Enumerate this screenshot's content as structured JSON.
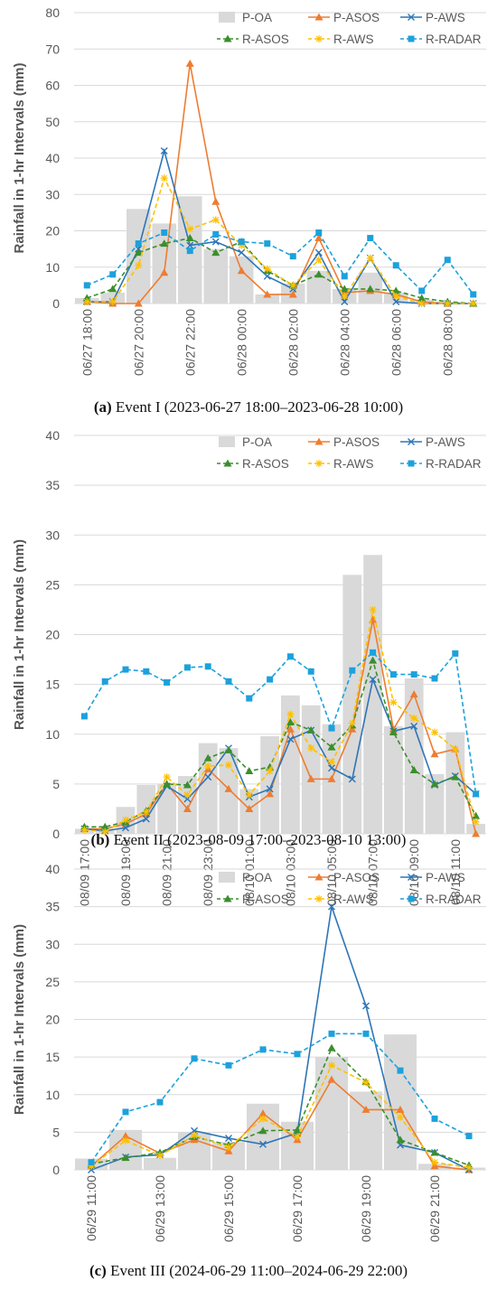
{
  "colors": {
    "P-OA": "#d9d9d9",
    "P-ASOS": "#ed7d31",
    "P-AWS": "#2e75b6",
    "R-ASOS": "#3a8f2c",
    "R-AWS": "#ffc000",
    "R-RADAR": "#1ca1dc"
  },
  "chart_data": [
    {
      "type": "bar",
      "ylabel": "Rainfall in 1-hr Intervals (mm)",
      "ylim": [
        0,
        80
      ],
      "yticks": [
        0,
        10,
        20,
        30,
        40,
        50,
        60,
        70,
        80
      ],
      "grid": true,
      "legend_position": "top-right",
      "x": [
        "06/27 18:00",
        "06/27 19:00",
        "06/27 20:00",
        "06/27 21:00",
        "06/27 22:00",
        "06/27 23:00",
        "06/28 00:00",
        "06/28 01:00",
        "06/28 02:00",
        "06/28 03:00",
        "06/28 04:00",
        "06/28 05:00",
        "06/28 06:00",
        "06/28 07:00",
        "06/28 08:00",
        "06/28 09:00"
      ],
      "tick_labels": [
        "06/27 18:00",
        "06/27 20:00",
        "06/27 22:00",
        "06/28 00:00",
        "06/28 02:00",
        "06/28 04:00",
        "06/28 06:00",
        "06/28 08:00"
      ],
      "series": [
        {
          "name": "P-OA",
          "kind": "bar",
          "values": [
            1.5,
            3,
            26,
            22,
            29.5,
            15,
            13,
            2.5,
            5.5,
            9,
            4,
            8.5,
            3,
            1,
            0.5,
            0
          ]
        },
        {
          "name": "P-ASOS",
          "kind": "line",
          "marker": "triangle",
          "dash": false,
          "values": [
            0.5,
            0,
            0,
            8.5,
            66,
            28,
            9,
            2.5,
            2.5,
            18,
            3,
            3.5,
            2.5,
            0.5,
            0,
            0
          ]
        },
        {
          "name": "P-AWS",
          "kind": "line",
          "marker": "x",
          "dash": false,
          "values": [
            0.5,
            0.5,
            15,
            42,
            16,
            17,
            14,
            7.5,
            4,
            14,
            0.5,
            12.5,
            0.5,
            0,
            0,
            0
          ]
        },
        {
          "name": "R-ASOS",
          "kind": "line",
          "marker": "triangle",
          "dash": true,
          "values": [
            1.5,
            4,
            14,
            16.5,
            18,
            14,
            17,
            9,
            5,
            8,
            4,
            4,
            3.5,
            1.5,
            0.5,
            0
          ]
        },
        {
          "name": "R-AWS",
          "kind": "line",
          "marker": "star",
          "dash": true,
          "values": [
            0.5,
            0.5,
            10.5,
            34.5,
            20.5,
            23,
            16,
            9.5,
            5,
            12,
            2,
            12.5,
            2,
            0,
            0,
            0
          ]
        },
        {
          "name": "R-RADAR",
          "kind": "line",
          "marker": "square",
          "dash": true,
          "values": [
            5,
            8,
            16.5,
            19.5,
            14.5,
            19,
            17,
            16.5,
            13,
            19.5,
            7.5,
            18,
            10.5,
            3.5,
            12,
            2.5
          ]
        }
      ],
      "caption_letter": "(a)",
      "caption_text": " Event I (2023-06-27 18:00–2023-06-28 10:00)"
    },
    {
      "type": "bar",
      "ylabel": "Rainfall in 1-hr Intervals (mm)",
      "ylim": [
        0,
        40
      ],
      "yticks": [
        0,
        5,
        10,
        15,
        20,
        25,
        30,
        35,
        40
      ],
      "grid": true,
      "legend_position": "top-right",
      "x": [
        "08/09 17:00",
        "08/09 18:00",
        "08/09 19:00",
        "08/09 20:00",
        "08/09 21:00",
        "08/09 22:00",
        "08/09 23:00",
        "08/10 00:00",
        "08/10 01:00",
        "08/10 02:00",
        "08/10 03:00",
        "08/10 04:00",
        "08/10 05:00",
        "08/10 06:00",
        "08/10 07:00",
        "08/10 08:00",
        "08/10 09:00",
        "08/10 10:00",
        "08/10 11:00",
        "08/10 12:00"
      ],
      "tick_labels": [
        "08/09 17:00",
        "08/09 19:00",
        "08/09 21:00",
        "08/09 23:00",
        "08/10 01:00",
        "08/10 03:00",
        "08/10 05:00",
        "08/10 07:00",
        "08/10 09:00",
        "08/10 11:00"
      ],
      "series": [
        {
          "name": "P-OA",
          "kind": "bar",
          "values": [
            0.5,
            0.5,
            2.7,
            4.9,
            5,
            5.8,
            9.1,
            8.6,
            4.5,
            9.8,
            13.9,
            12.9,
            11,
            26,
            28,
            10.8,
            15.6,
            6,
            10.2,
            1
          ]
        },
        {
          "name": "P-ASOS",
          "kind": "line",
          "marker": "triangle",
          "dash": false,
          "values": [
            0.5,
            0.5,
            1,
            2,
            5,
            2.5,
            6.5,
            4.5,
            2.5,
            4,
            10.5,
            5.5,
            5.5,
            10.5,
            21.5,
            10.5,
            14,
            8,
            8.5,
            0
          ]
        },
        {
          "name": "P-AWS",
          "kind": "line",
          "marker": "x",
          "dash": false,
          "values": [
            0.5,
            0.3,
            0.6,
            1.5,
            4.8,
            3.5,
            5.7,
            8.6,
            3.7,
            4.5,
            9.5,
            10.4,
            6.6,
            5.5,
            15.5,
            10.3,
            10.8,
            4.9,
            5.8,
            4
          ]
        },
        {
          "name": "R-ASOS",
          "kind": "line",
          "marker": "triangle",
          "dash": true,
          "values": [
            0.7,
            0.7,
            1.2,
            2.3,
            5,
            4.9,
            7.6,
            8.4,
            6.3,
            6.7,
            11.2,
            10.4,
            8.7,
            10.9,
            17.4,
            10.2,
            6.4,
            5,
            5.7,
            1.8
          ]
        },
        {
          "name": "R-AWS",
          "kind": "line",
          "marker": "star",
          "dash": true,
          "values": [
            0.4,
            0.2,
            1.4,
            2.2,
            5.7,
            3.9,
            6.8,
            6.9,
            3.9,
            6.3,
            12,
            8.6,
            7.2,
            11.1,
            22.5,
            13.2,
            11.6,
            10.2,
            8.5,
            1.2
          ]
        },
        {
          "name": "R-RADAR",
          "kind": "line",
          "marker": "square",
          "dash": true,
          "values": [
            11.8,
            15.3,
            16.5,
            16.3,
            15.2,
            16.7,
            16.8,
            15.3,
            13.6,
            15.5,
            17.8,
            16.3,
            10.6,
            16.4,
            18.2,
            16,
            16,
            15.6,
            18.1,
            4
          ]
        }
      ],
      "caption_letter": "(b)",
      "caption_text": " Event II (2023-08-09 17:00–2023-08-10 13:00)"
    },
    {
      "type": "bar",
      "ylabel": "Rainfall in 1-hr Intervals (mm)",
      "ylim": [
        0,
        40
      ],
      "yticks": [
        0,
        5,
        10,
        15,
        20,
        25,
        30,
        35,
        40
      ],
      "grid": true,
      "legend_position": "top-right",
      "x": [
        "06/29 11:00",
        "06/29 12:00",
        "06/29 13:00",
        "06/29 14:00",
        "06/29 15:00",
        "06/29 16:00",
        "06/29 17:00",
        "06/29 18:00",
        "06/29 19:00",
        "06/29 20:00",
        "06/29 21:00",
        "06/29 22:00"
      ],
      "tick_labels": [
        "06/29 11:00",
        "06/29 13:00",
        "06/29 15:00",
        "06/29 17:00",
        "06/29 19:00",
        "06/29 21:00"
      ],
      "series": [
        {
          "name": "P-OA",
          "kind": "bar",
          "values": [
            1.5,
            5.3,
            1.6,
            5,
            3.7,
            8.8,
            6.4,
            15,
            10.4,
            18,
            0.8,
            0.3
          ]
        },
        {
          "name": "P-ASOS",
          "kind": "line",
          "marker": "triangle",
          "dash": false,
          "values": [
            0.5,
            4.5,
            2.2,
            4,
            2.5,
            7.5,
            4,
            12,
            8,
            8,
            0.5,
            0
          ]
        },
        {
          "name": "P-AWS",
          "kind": "line",
          "marker": "x",
          "dash": false,
          "values": [
            0,
            1.7,
            2,
            5.2,
            4.2,
            3.4,
            4.9,
            35,
            21.8,
            3.3,
            2.3,
            0
          ]
        },
        {
          "name": "R-ASOS",
          "kind": "line",
          "marker": "triangle",
          "dash": true,
          "values": [
            0.8,
            1.6,
            2.3,
            4.4,
            3.3,
            5.2,
            5.3,
            16.2,
            11.7,
            4,
            2.3,
            0.6
          ]
        },
        {
          "name": "R-AWS",
          "kind": "line",
          "marker": "star",
          "dash": true,
          "values": [
            0.5,
            3.9,
            1.9,
            4.6,
            3,
            6.8,
            4.4,
            13.9,
            11.6,
            7,
            1,
            0.3
          ]
        },
        {
          "name": "R-RADAR",
          "kind": "line",
          "marker": "square",
          "dash": true,
          "values": [
            1,
            7.7,
            9,
            14.8,
            13.9,
            16,
            15.4,
            18.1,
            18.1,
            13.2,
            6.8,
            4.5
          ]
        }
      ],
      "caption_letter": "(c)",
      "caption_text": " Event III (2024-06-29 11:00–2024-06-29 22:00)"
    }
  ]
}
